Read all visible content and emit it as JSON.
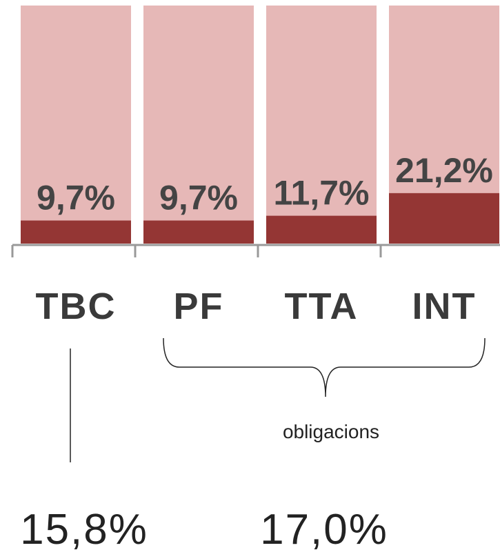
{
  "chart_data": {
    "type": "bar",
    "categories": [
      "TBC",
      "PF",
      "TTA",
      "INT"
    ],
    "values": [
      9.7,
      9.7,
      11.7,
      21.2
    ],
    "value_labels": [
      "9,7%",
      "9,7%",
      "11,7%",
      "21,2%"
    ],
    "ylim": [
      0,
      100
    ],
    "color": "#943634",
    "background_color": "#e6b8b7",
    "annotations": [
      "obligacions",
      "15,8%",
      "17,0%"
    ]
  }
}
